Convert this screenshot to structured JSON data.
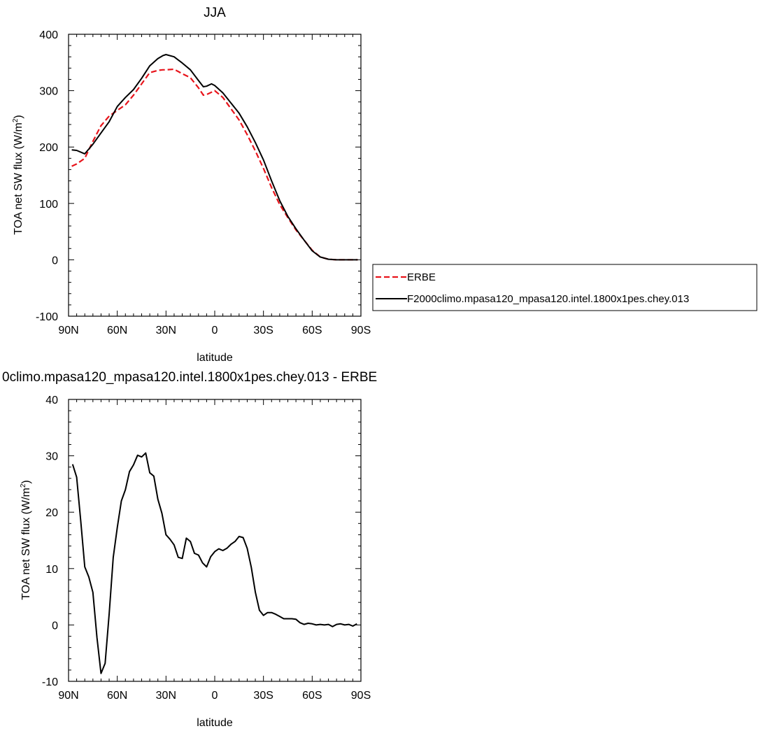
{
  "chart_data": [
    {
      "type": "line",
      "title": "JJA",
      "xlabel": "latitude",
      "ylabel": "TOA net SW flux (W/m",
      "ylabel_superscript": "2",
      "ylabel_suffix": ")",
      "xlim": [
        90,
        -90
      ],
      "ylim": [
        -100,
        400
      ],
      "xticks": [
        90,
        60,
        30,
        0,
        -30,
        -60,
        -90
      ],
      "xtick_labels": [
        "90N",
        "60N",
        "30N",
        "0",
        "30S",
        "60S",
        "90S"
      ],
      "yticks": [
        -100,
        0,
        100,
        200,
        300,
        400
      ],
      "ytick_labels": [
        "-100",
        "0",
        "100",
        "200",
        "300",
        "400"
      ],
      "legend": {
        "placement": "right",
        "entries": [
          "ERBE",
          "F2000climo.mpasa120_mpasa120.intel.1800x1pes.chey.013"
        ]
      },
      "series": [
        {
          "name": "ERBE",
          "color": "#e8141b",
          "dash": true,
          "x": [
            88,
            85,
            80,
            75,
            70,
            65,
            60,
            55,
            50,
            45,
            40,
            35,
            32,
            30,
            25,
            20,
            15,
            10,
            7,
            5,
            0,
            -5,
            -10,
            -15,
            -20,
            -25,
            -30,
            -35,
            -40,
            -45,
            -50,
            -55,
            -60,
            -65,
            -70,
            -75,
            -80,
            -85,
            -88
          ],
          "y": [
            166,
            170,
            180,
            210,
            238,
            255,
            265,
            275,
            292,
            312,
            332,
            336,
            337,
            337,
            338,
            330,
            323,
            305,
            292,
            293,
            300,
            288,
            268,
            248,
            222,
            193,
            162,
            128,
            98,
            75,
            53,
            35,
            17,
            5,
            1,
            0,
            0,
            0,
            0
          ]
        },
        {
          "name": "F2000climo.mpasa120_mpasa120.intel.1800x1pes.chey.013",
          "color": "#000000",
          "dash": false,
          "x": [
            88,
            85,
            80,
            75,
            70,
            65,
            60,
            55,
            50,
            45,
            40,
            35,
            32,
            30,
            25,
            20,
            15,
            10,
            7,
            5,
            2,
            0,
            -2,
            -5,
            -10,
            -15,
            -20,
            -25,
            -30,
            -35,
            -40,
            -45,
            -50,
            -55,
            -60,
            -65,
            -70,
            -75,
            -80,
            -85,
            -88
          ],
          "y": [
            195,
            194,
            188,
            205,
            225,
            245,
            272,
            288,
            302,
            322,
            344,
            357,
            362,
            364,
            360,
            349,
            337,
            318,
            307,
            308,
            312,
            309,
            304,
            296,
            278,
            260,
            236,
            208,
            177,
            140,
            105,
            77,
            55,
            35,
            16,
            5,
            1,
            0,
            0,
            0,
            0
          ]
        }
      ]
    },
    {
      "type": "line",
      "title": "0climo.mpasa120_mpasa120.intel.1800x1pes.chey.013 - ERBE",
      "xlabel": "latitude",
      "ylabel": "TOA net SW flux (W/m",
      "ylabel_superscript": "2",
      "ylabel_suffix": ")",
      "xlim": [
        90,
        -90
      ],
      "ylim": [
        -10,
        40
      ],
      "xticks": [
        90,
        60,
        30,
        0,
        -30,
        -60,
        -90
      ],
      "xtick_labels": [
        "90N",
        "60N",
        "30N",
        "0",
        "30S",
        "60S",
        "90S"
      ],
      "yticks": [
        -10,
        0,
        10,
        20,
        30,
        40
      ],
      "ytick_labels": [
        "-10",
        "0",
        "10",
        "20",
        "30",
        "40"
      ],
      "series": [
        {
          "color": "#000000",
          "x": [
            87.5,
            85,
            82.5,
            80,
            77.5,
            75,
            72.5,
            70,
            67.5,
            65,
            62.5,
            60,
            57.5,
            55,
            52.5,
            50,
            47.5,
            45,
            42.5,
            40,
            37.5,
            35,
            32.5,
            30,
            27.5,
            25,
            22.5,
            20,
            17.5,
            15,
            12.5,
            10,
            7.5,
            5,
            2.5,
            0,
            -2.5,
            -5,
            -7.5,
            -10,
            -12.5,
            -15,
            -17.5,
            -20,
            -22.5,
            -25,
            -27.5,
            -30,
            -32.5,
            -35,
            -37.5,
            -40,
            -42.5,
            -45,
            -47.5,
            -50,
            -52.5,
            -55,
            -57.5,
            -60,
            -62.5,
            -65,
            -67.5,
            -70,
            -72.5,
            -75,
            -77.5,
            -80,
            -82.5,
            -85,
            -87.5
          ],
          "y": [
            28.5,
            26.2,
            18.5,
            10.3,
            8.5,
            5.8,
            -2.2,
            -8.6,
            -6.8,
            2.0,
            12.0,
            17.3,
            22.0,
            24.0,
            27.2,
            28.4,
            30.1,
            29.8,
            30.5,
            27.0,
            26.4,
            22.3,
            19.8,
            16.0,
            15.2,
            14.2,
            12.0,
            11.8,
            15.4,
            14.8,
            12.7,
            12.4,
            11.0,
            10.3,
            12.1,
            13.0,
            13.5,
            13.2,
            13.6,
            14.3,
            14.8,
            15.7,
            15.5,
            13.6,
            10.2,
            5.8,
            2.6,
            1.7,
            2.2,
            2.2,
            1.9,
            1.5,
            1.1,
            1.1,
            1.1,
            1.0,
            0.4,
            0.1,
            0.3,
            0.2,
            0.0,
            0.1,
            0.0,
            0.1,
            -0.3,
            0.1,
            0.2,
            0.0,
            0.1,
            -0.2,
            0.2
          ]
        }
      ]
    }
  ]
}
